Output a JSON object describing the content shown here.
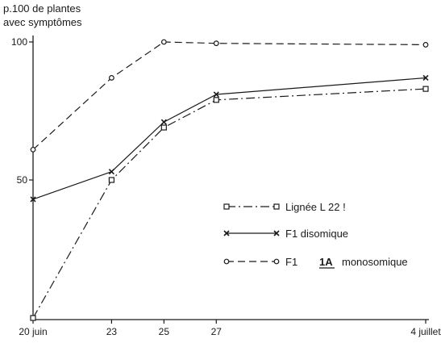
{
  "chart_data": {
    "type": "line",
    "ylabel_lines": [
      "p.100 de plantes",
      "avec symptômes"
    ],
    "x_positions": [
      20,
      23,
      25,
      27,
      35
    ],
    "x_tick_labels": [
      "20 juin",
      "23",
      "25",
      "27",
      "4 juillet"
    ],
    "ylim": [
      0,
      100
    ],
    "y_ticks": [
      50,
      100
    ],
    "y_tick_labels": [
      "50",
      "100"
    ],
    "series": [
      {
        "name": "Lignée L 22 !",
        "values": [
          0,
          50,
          69,
          79,
          83
        ],
        "style": "dashdot",
        "marker": "square",
        "legend_extra": ""
      },
      {
        "name": "F1 disomique",
        "values": [
          43,
          53,
          71,
          81,
          87
        ],
        "style": "solid",
        "marker": "x",
        "legend_extra": ""
      },
      {
        "name": "F1",
        "values": [
          61,
          87,
          100,
          99.5,
          99
        ],
        "style": "dashed",
        "marker": "circle",
        "legend_extra": "1A",
        "legend_suffix": "monosomique"
      }
    ],
    "colors": {
      "line": "#1a1a1a",
      "background": "#ffffff"
    }
  }
}
